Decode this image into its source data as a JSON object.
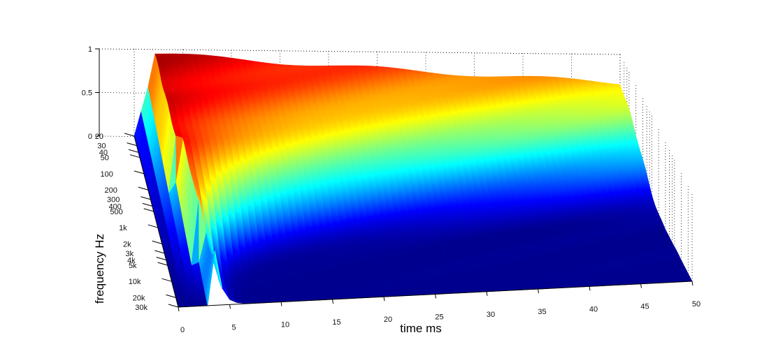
{
  "chart_data": {
    "type": "surface",
    "title": "",
    "xlabel": "time   ms",
    "ylabel": "frequency   Hz",
    "zlabel": "",
    "colormap": "jet",
    "colormap_stops": [
      "#00008f",
      "#0000ff",
      "#0080ff",
      "#00ffff",
      "#80ff80",
      "#ffff00",
      "#ff8000",
      "#ff0000",
      "#800000"
    ],
    "x_ticks": [
      0,
      5,
      10,
      15,
      20,
      25,
      30,
      35,
      40,
      45,
      50
    ],
    "x_tick_labels": [
      "0",
      "5",
      "10",
      "15",
      "20",
      "25",
      "30",
      "35",
      "40",
      "45",
      "50"
    ],
    "xlim": [
      0,
      50
    ],
    "y_ticks": [
      20,
      30,
      40,
      50,
      100,
      200,
      300,
      400,
      500,
      1000,
      2000,
      3000,
      4000,
      5000,
      10000,
      20000,
      30000
    ],
    "y_tick_labels": [
      "20",
      "30",
      "40",
      "50",
      "100",
      "200",
      "300",
      "400",
      "500",
      "1k",
      "2k",
      "3k",
      "4k",
      "5k",
      "10k",
      "20k",
      "30k"
    ],
    "ylim": [
      20,
      30000
    ],
    "y_scale": "log",
    "z_ticks": [
      0,
      0.5,
      1
    ],
    "z_tick_labels": [
      "0",
      "0.5",
      "1"
    ],
    "zlim": [
      0,
      1
    ],
    "grid": true,
    "legend": "none"
  }
}
